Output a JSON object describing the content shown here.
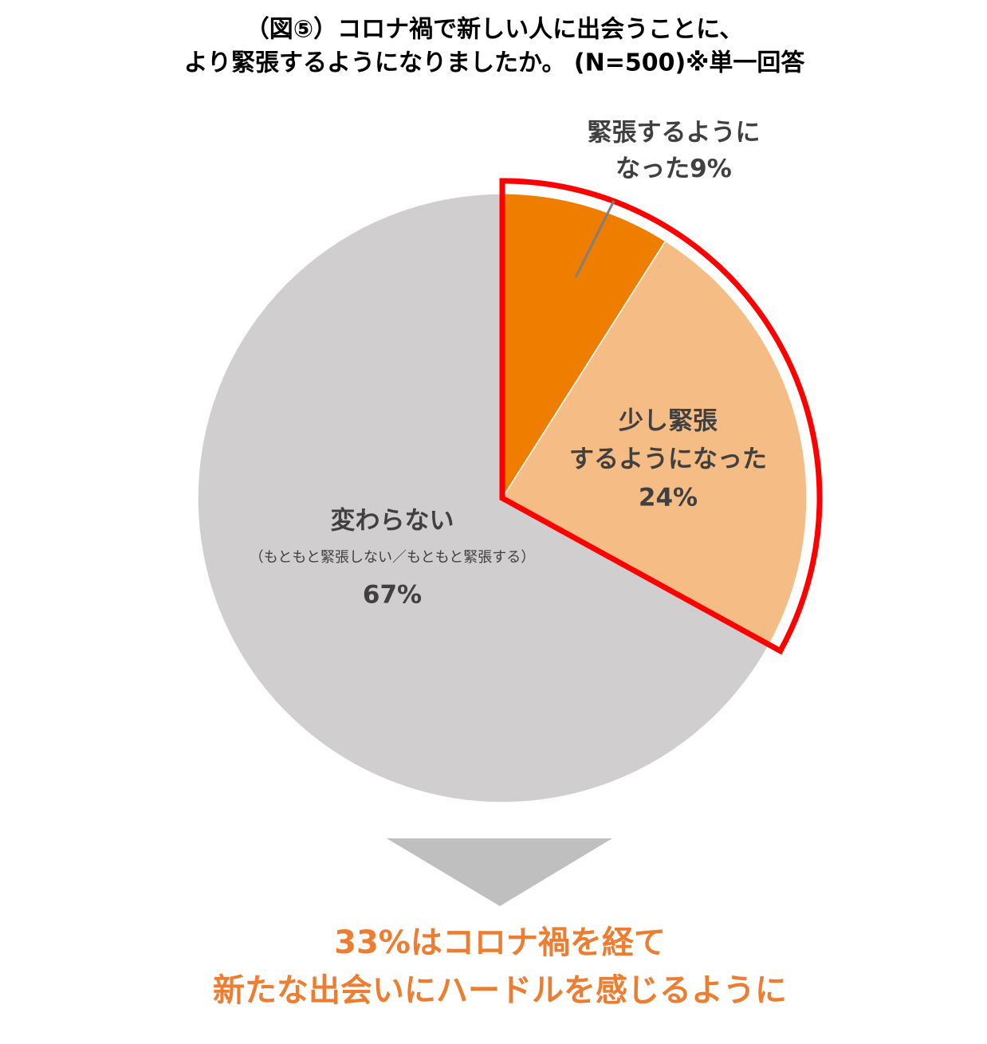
{
  "chart_data": {
    "type": "pie",
    "title": [
      "（図⑤）コロナ禍で新しい人に出会うことに、",
      "より緊張するようになりましたか。 (N=500)※単一回答"
    ],
    "labels": [
      [
        "緊張するように",
        "なった"
      ],
      [
        "少し緊張",
        "するようになった"
      ],
      [
        "変わらない",
        "（もともと緊張しない／もともと緊張する）"
      ]
    ],
    "values": [
      9,
      24,
      67
    ],
    "value_labels": [
      "9%",
      "24%",
      "67%"
    ],
    "colors": [
      "#ef7d00",
      "#f5bd85",
      "#d0cece"
    ],
    "highlight_color": "#ff0000",
    "annotation": [
      "33%はコロナ禍を経て",
      "新たな出会いにハードルを感じるように"
    ]
  }
}
